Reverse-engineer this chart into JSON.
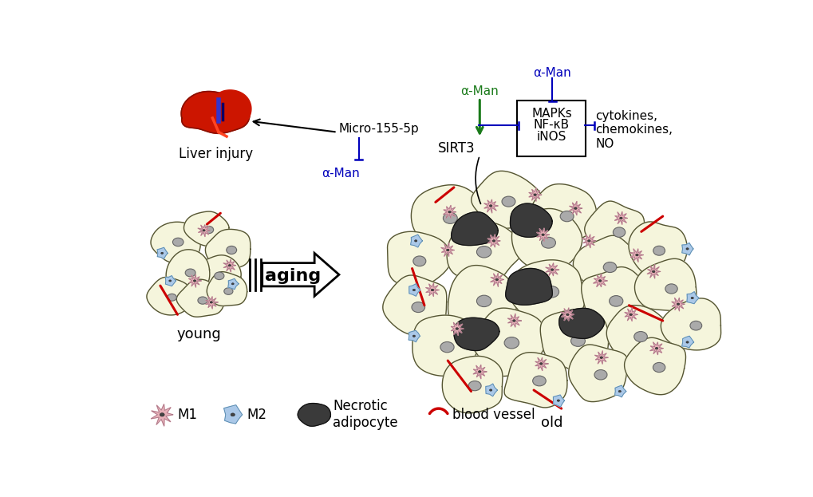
{
  "bg_color": "#ffffff",
  "young_label": "young",
  "old_label": "old",
  "aging_label": "aging",
  "liver_label": "Liver injury",
  "micro_label": "Micro-155-5p",
  "aman_green_label": "α-Man",
  "aman_blue1_label": "α-Man",
  "aman_blue2_label": "α-Man",
  "mapks_label": "MAPKs",
  "nfkb_label": "NF-κB",
  "inos_label": "iNOS",
  "sirt3_label": "SIRT3",
  "cytokines_label": "cytokines,\nchemokines,\nNO",
  "legend_m1": "M1",
  "legend_m2": "M2",
  "legend_necrotic": "Necrotic\nadipocyte",
  "legend_vessel": "blood vessel",
  "green_arrow_color": "#1a7a1a",
  "blue_inhibit_color": "#0000bb",
  "red_vessel_color": "#cc0000",
  "adipocyte_fill": "#f5f5dc",
  "adipocyte_stroke": "#555533",
  "necrotic_fill": "#3a3a3a",
  "m1_fill": "#e8b0b8",
  "m1_stroke": "#aa7788",
  "m2_fill": "#aac8e8",
  "m2_stroke": "#5588aa",
  "nucleus_fill": "#888888",
  "liver_main": "#cc1100",
  "liver_dark": "#991100"
}
